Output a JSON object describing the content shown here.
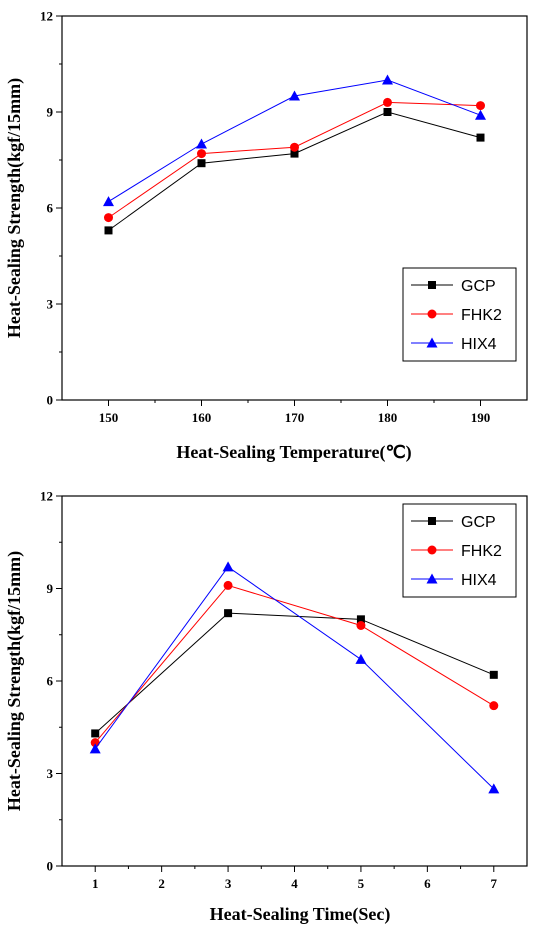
{
  "colors": {
    "GCP": "#000000",
    "FHK2": "#ff0000",
    "HIX4": "#0000ff"
  },
  "chart_data": [
    {
      "type": "line",
      "title": "",
      "xlabel": "Heat-Sealing Temperature(℃)",
      "ylabel": "Heat-Sealing Strength(kgf/15mm)",
      "x": [
        150,
        160,
        170,
        180,
        190
      ],
      "x_ticks": [
        "150",
        "160",
        "170",
        "180",
        "190"
      ],
      "xlim": [
        145,
        195
      ],
      "ylim": [
        0,
        12
      ],
      "y_ticks": [
        "0",
        "3",
        "6",
        "9",
        "12"
      ],
      "legend_position": "bottom-right",
      "grid": false,
      "series": [
        {
          "name": "GCP",
          "marker": "square",
          "color": "#000000",
          "values": [
            5.3,
            7.4,
            7.7,
            9.0,
            8.2
          ]
        },
        {
          "name": "FHK2",
          "marker": "circle",
          "color": "#ff0000",
          "values": [
            5.7,
            7.7,
            7.9,
            9.3,
            9.2
          ]
        },
        {
          "name": "HIX4",
          "marker": "triangle",
          "color": "#0000ff",
          "values": [
            6.2,
            8.0,
            9.5,
            10.0,
            8.9
          ]
        }
      ]
    },
    {
      "type": "line",
      "title": "",
      "xlabel": "Heat-Sealing Time(Sec)",
      "ylabel": "Heat-Sealing Strength(kgf/15mm)",
      "x": [
        1,
        3,
        5,
        7
      ],
      "x_ticks": [
        "1",
        "2",
        "3",
        "4",
        "5",
        "6",
        "7"
      ],
      "xlim": [
        0.5,
        7.5
      ],
      "ylim": [
        0,
        12
      ],
      "y_ticks": [
        "0",
        "3",
        "6",
        "9",
        "12"
      ],
      "legend_position": "top-right",
      "grid": false,
      "series": [
        {
          "name": "GCP",
          "marker": "square",
          "color": "#000000",
          "values": [
            4.3,
            8.2,
            8.0,
            6.2
          ]
        },
        {
          "name": "FHK2",
          "marker": "circle",
          "color": "#ff0000",
          "values": [
            4.0,
            9.1,
            7.8,
            5.2
          ]
        },
        {
          "name": "HIX4",
          "marker": "triangle",
          "color": "#0000ff",
          "values": [
            3.8,
            9.7,
            6.7,
            2.5
          ]
        }
      ]
    }
  ]
}
